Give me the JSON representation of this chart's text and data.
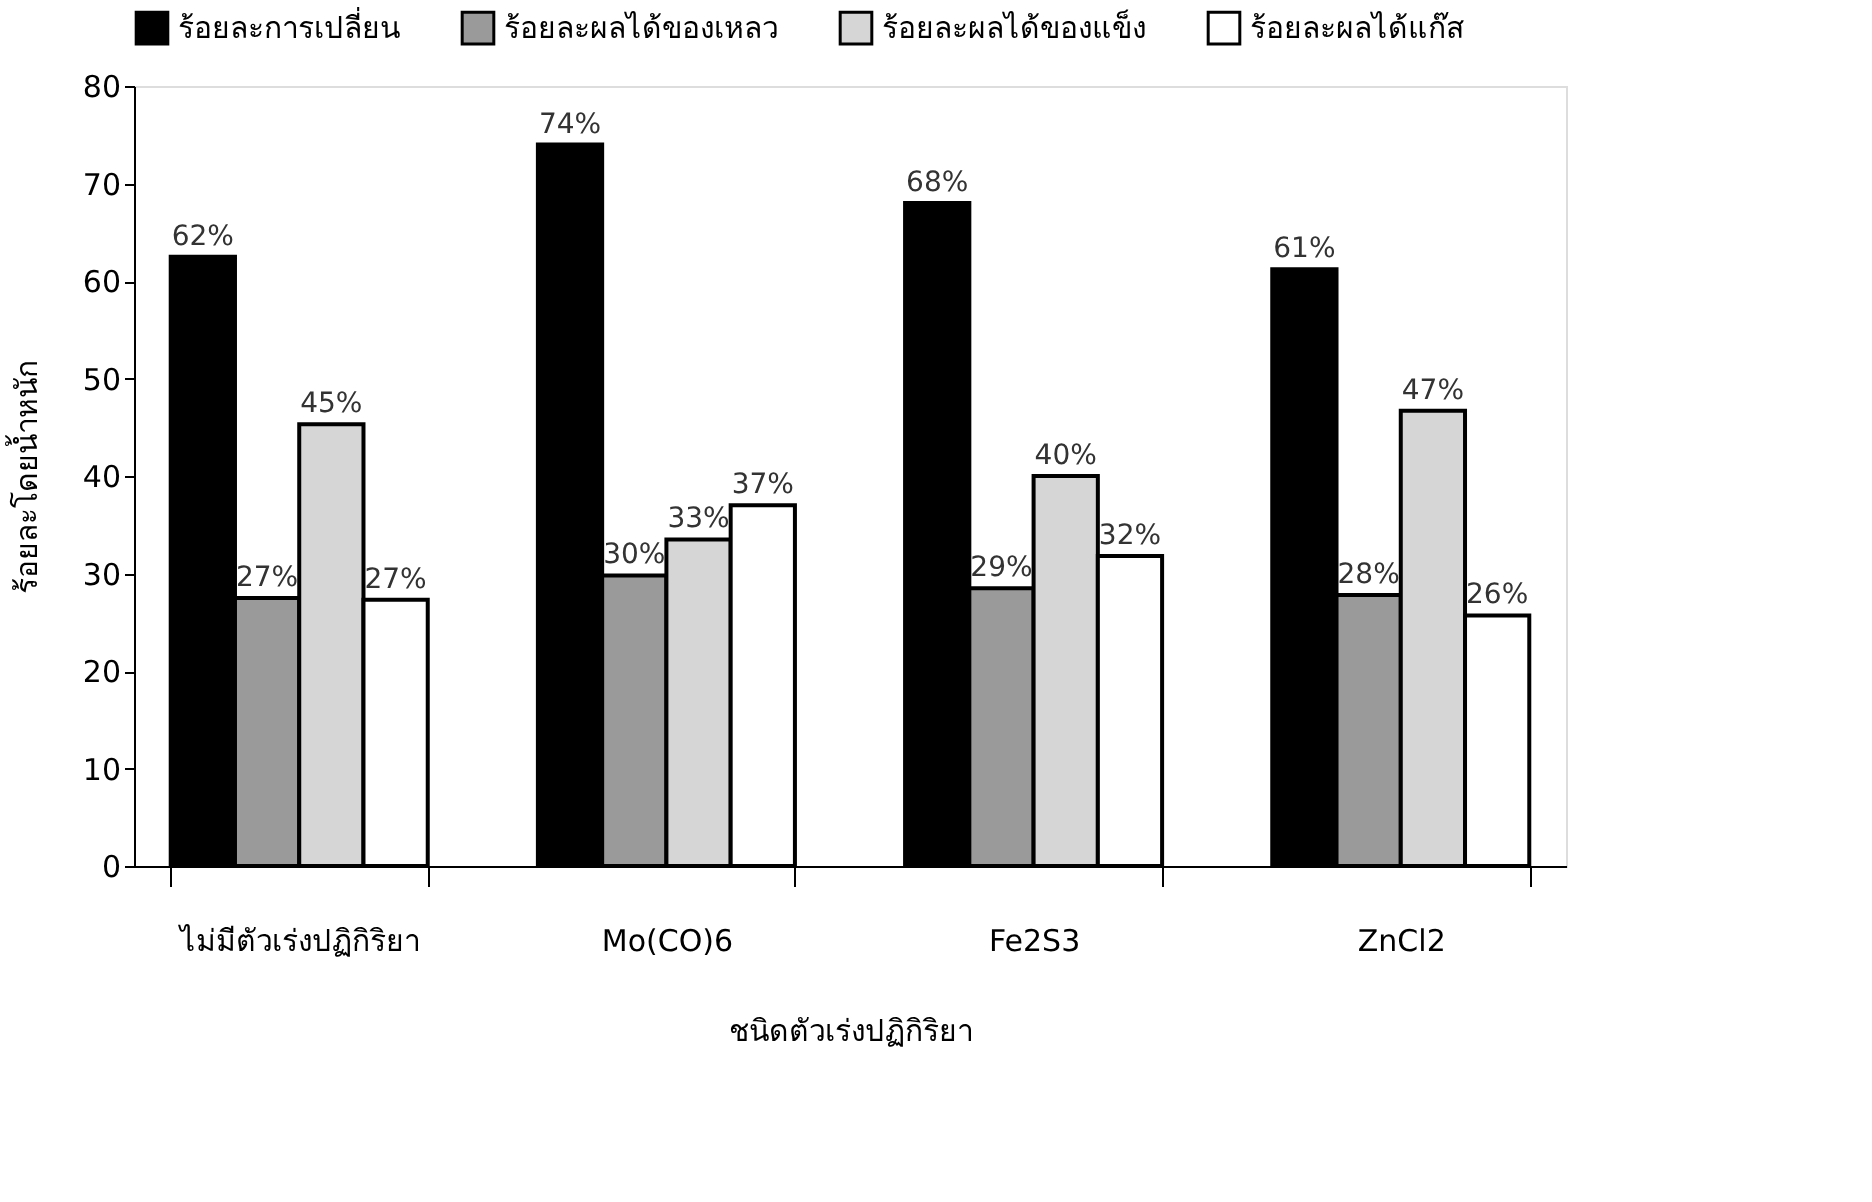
{
  "chart_data": {
    "type": "bar",
    "xlabel": "ชนิดตัวเร่งปฏิกิริยา",
    "ylabel": "ร้อยละโดยน้ำหนัก",
    "categories": [
      "ไม่มีตัวเร่งปฏิกิริยา",
      "Mo(CO)6",
      "Fe2S3",
      "ZnCl2"
    ],
    "series": [
      {
        "name": "ร้อยละการเปลี่ยน",
        "color": "#000000",
        "values": [
          62.5,
          74,
          68,
          61.2
        ],
        "value_labels": [
          "62%",
          "74%",
          "68%",
          "61%"
        ]
      },
      {
        "name": "ร้อยละผลได้ของเหลว",
        "color": "#9a9a9a",
        "values": [
          27.5,
          29.8,
          28.5,
          27.8
        ],
        "value_labels": [
          "27%",
          "30%",
          "29%",
          "28%"
        ]
      },
      {
        "name": "ร้อยละผลได้ของแข็ง",
        "color": "#d6d6d6",
        "values": [
          45.3,
          33.5,
          40,
          46.7
        ],
        "value_labels": [
          "45%",
          "33%",
          "40%",
          "47%"
        ]
      },
      {
        "name": "ร้อยละผลได้แก๊ส",
        "color": "#ffffff",
        "values": [
          27.3,
          37,
          31.8,
          25.7
        ],
        "value_labels": [
          "27%",
          "37%",
          "32%",
          "26%"
        ]
      }
    ],
    "ylim": [
      0,
      80
    ],
    "yticks": [
      0,
      10,
      20,
      30,
      40,
      50,
      60,
      70,
      80
    ],
    "grid": false,
    "legend": "top"
  }
}
